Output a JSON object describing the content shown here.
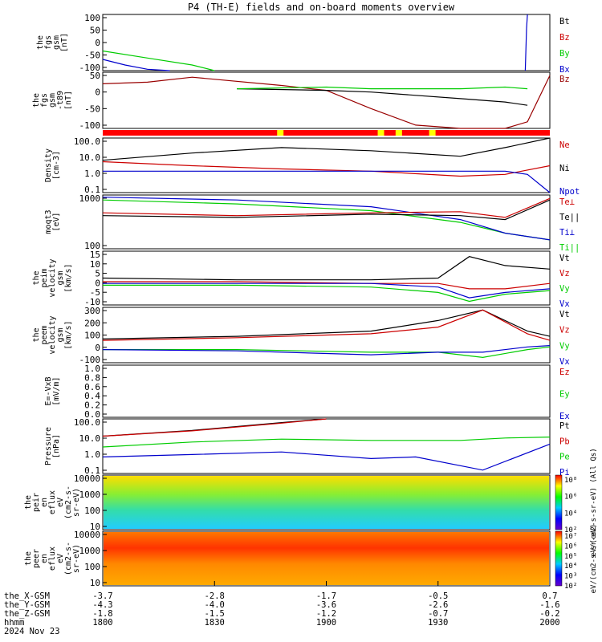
{
  "chart_data": {
    "type": "line",
    "title": "P4 (TH-E) fields and on-board moments overview",
    "x_range_hhmm": [
      1800,
      2000
    ],
    "panels": [
      {
        "id": "fgs",
        "ylabel": [
          "the",
          "fgs",
          "gsm",
          "[nT]"
        ],
        "ylim": [
          -100,
          100
        ],
        "yticks": [
          "100",
          "50",
          "0",
          "-50",
          "-100"
        ],
        "legend": [
          {
            "name": "Bt",
            "color": "#000000"
          },
          {
            "name": "Bz",
            "color": "#cc0000"
          },
          {
            "name": "By",
            "color": "#00cc00"
          },
          {
            "name": "Bx",
            "color": "#0000cc"
          }
        ]
      },
      {
        "id": "fgs-t89",
        "ylabel": [
          "the",
          "fgs",
          "gsm",
          "-t89",
          "[nT]"
        ],
        "ylim": [
          -120,
          50
        ],
        "yticks": [
          "50",
          "0",
          "-50",
          "-100"
        ],
        "legend": [
          {
            "name": "Bz",
            "color": "#990000"
          }
        ]
      },
      {
        "id": "density",
        "ylabel": [
          "Density",
          "[cm-3]"
        ],
        "log": true,
        "ylim": [
          0.1,
          100
        ],
        "yticks": [
          "100.0",
          "10.0",
          "1.0",
          "0.1"
        ],
        "legend": [
          {
            "name": "Ne",
            "color": "#cc0000"
          },
          {
            "name": "Ni",
            "color": "#000000"
          },
          {
            "name": "Npot",
            "color": "#0000cc"
          }
        ]
      },
      {
        "id": "temp",
        "ylabel": [
          "moqt3",
          "[eV]"
        ],
        "log": true,
        "ylim": [
          20,
          5000
        ],
        "yticks": [
          "1000",
          "100"
        ],
        "legend": [
          {
            "name": "Te⊥",
            "color": "#cc0000"
          },
          {
            "name": "Te||",
            "color": "#000000"
          },
          {
            "name": "Ti⊥",
            "color": "#0000cc"
          },
          {
            "name": "Ti||",
            "color": "#00cc00"
          }
        ]
      },
      {
        "id": "peim",
        "ylabel": [
          "the",
          "peim",
          "velocity",
          "gsm",
          "[km/s]"
        ],
        "ylim": [
          -12,
          18
        ],
        "yticks": [
          "15",
          "10",
          "5",
          "0",
          "-5",
          "-10"
        ],
        "legend": [
          {
            "name": "Vt",
            "color": "#000000"
          },
          {
            "name": "Vz",
            "color": "#cc0000"
          },
          {
            "name": "Vy",
            "color": "#00cc00"
          },
          {
            "name": "Vx",
            "color": "#0000cc"
          }
        ]
      },
      {
        "id": "peem",
        "ylabel": [
          "the",
          "peem",
          "velocity",
          "gsm",
          "[km/s]"
        ],
        "ylim": [
          -120,
          300
        ],
        "yticks": [
          "300",
          "200",
          "100",
          "0",
          "-100"
        ],
        "legend": [
          {
            "name": "Vt",
            "color": "#000000"
          },
          {
            "name": "Vz",
            "color": "#cc0000"
          },
          {
            "name": "Vy",
            "color": "#00cc00"
          },
          {
            "name": "Vx",
            "color": "#0000cc"
          }
        ]
      },
      {
        "id": "efield",
        "ylabel": [
          "E=-VxB",
          "[mV/m]"
        ],
        "ylim": [
          0,
          1
        ],
        "yticks": [
          "1.0",
          "0.8",
          "0.6",
          "0.4",
          "0.2",
          "0.0"
        ],
        "legend": [
          {
            "name": "Ez",
            "color": "#cc0000"
          },
          {
            "name": "Ey",
            "color": "#00cc00"
          },
          {
            "name": "Ex",
            "color": "#0000cc"
          }
        ]
      },
      {
        "id": "pressure",
        "ylabel": [
          "Pressure",
          "[nPa]"
        ],
        "log": true,
        "ylim": [
          0.05,
          100
        ],
        "yticks": [
          "100.0",
          "10.0",
          "1.0",
          "0.1"
        ],
        "legend": [
          {
            "name": "Pt",
            "color": "#000000"
          },
          {
            "name": "Pb",
            "color": "#cc0000"
          },
          {
            "name": "Pe",
            "color": "#00cc00"
          },
          {
            "name": "Pi",
            "color": "#0000cc"
          }
        ]
      },
      {
        "id": "peir",
        "ylabel": [
          "the",
          "peir",
          "en",
          "eflux",
          "eV",
          "(cm2-s-",
          "sr-eV)"
        ],
        "log": true,
        "ylim": [
          8,
          20000
        ],
        "yticks": [
          "10000",
          "1000",
          "100",
          "10"
        ],
        "colorbar_label": "eV/(cm2-s-sr-eV) (All Qs)",
        "colorbar_ticks": [
          "10⁸",
          "10⁶",
          "10⁴",
          "10²"
        ]
      },
      {
        "id": "peer",
        "ylabel": [
          "the",
          "peer",
          "en",
          "eflux",
          "eV",
          "(cm2-s-",
          "sr-eV)"
        ],
        "log": true,
        "ylim": [
          8,
          20000
        ],
        "yticks": [
          "10000",
          "1000",
          "100",
          "10"
        ],
        "colorbar_label": "eV/(cm2-s-sr-eV)",
        "colorbar_ticks": [
          "10⁷",
          "10⁶",
          "10⁵",
          "10⁴",
          "10³",
          "10²"
        ]
      }
    ],
    "flag_bar": {
      "color": "#ff0000",
      "marks": [
        {
          "t": 0.39,
          "color": "#ffff00"
        },
        {
          "t": 0.615,
          "color": "#ffff00"
        },
        {
          "t": 0.655,
          "color": "#ffff00"
        },
        {
          "t": 0.73,
          "color": "#ffff00"
        }
      ]
    },
    "footer": {
      "rows": [
        {
          "label": "the_X-GSM",
          "values": [
            "-3.7",
            "-2.8",
            "-1.7",
            "-0.5",
            "0.7"
          ]
        },
        {
          "label": "the_Y-GSM",
          "values": [
            "-4.3",
            "-4.0",
            "-3.6",
            "-2.6",
            "-1.6"
          ]
        },
        {
          "label": "the_Z-GSM",
          "values": [
            "-1.8",
            "-1.5",
            "-1.2",
            "-0.7",
            "-0.2"
          ]
        },
        {
          "label": "hhmm",
          "values": [
            "1800",
            "1830",
            "1900",
            "1930",
            "2000"
          ]
        }
      ],
      "date": "2024 Nov 23"
    },
    "series": [
      {
        "panel": "fgs",
        "name": "By",
        "color": "#00cc00",
        "x": [
          0,
          0.1,
          0.2,
          0.25
        ],
        "y": [
          -30,
          -55,
          -80,
          -100
        ]
      },
      {
        "panel": "fgs",
        "name": "Bx",
        "color": "#0000cc",
        "x": [
          0,
          0.05,
          0.1,
          0.15
        ],
        "y": [
          -60,
          -80,
          -95,
          -100
        ]
      },
      {
        "panel": "fgs",
        "name": "Bx",
        "color": "#0000cc",
        "x": [
          0.945,
          0.948,
          0.95
        ],
        "y": [
          -100,
          50,
          100
        ]
      },
      {
        "panel": "fgs-t89",
        "name": "Bz",
        "color": "#990000",
        "x": [
          0,
          0.1,
          0.2,
          0.4,
          0.5,
          0.6,
          0.7,
          0.8,
          0.9,
          0.95,
          1.0
        ],
        "y": [
          15,
          20,
          35,
          10,
          -5,
          -60,
          -110,
          -120,
          -120,
          -100,
          40
        ]
      },
      {
        "panel": "fgs-t89",
        "name": "Bt",
        "color": "#000000",
        "x": [
          0.3,
          0.5,
          0.6,
          0.7,
          0.8,
          0.9,
          0.95
        ],
        "y": [
          0,
          -5,
          -10,
          -20,
          -30,
          -40,
          -50
        ]
      },
      {
        "panel": "fgs-t89",
        "name": "By",
        "color": "#00cc00",
        "x": [
          0.3,
          0.5,
          0.6,
          0.8,
          0.9,
          0.95
        ],
        "y": [
          0,
          5,
          0,
          0,
          5,
          0
        ]
      },
      {
        "panel": "density",
        "name": "Ni",
        "color": "#000000",
        "x": [
          0,
          0.2,
          0.4,
          0.6,
          0.8,
          0.9,
          1.0
        ],
        "y": [
          6,
          15,
          30,
          20,
          10,
          30,
          100
        ]
      },
      {
        "panel": "density",
        "name": "Ne",
        "color": "#cc0000",
        "x": [
          0,
          0.2,
          0.4,
          0.6,
          0.8,
          0.9,
          1.0
        ],
        "y": [
          5,
          3,
          2,
          1.5,
          0.8,
          1,
          3
        ]
      },
      {
        "panel": "density",
        "name": "Npot",
        "color": "#0000cc",
        "x": [
          0,
          0.4,
          0.8,
          0.9,
          0.95,
          1.0
        ],
        "y": [
          1.5,
          1.5,
          1.5,
          1.5,
          1.0,
          0.1
        ]
      },
      {
        "panel": "temp",
        "name": "Ti||",
        "color": "#00cc00",
        "x": [
          0,
          0.3,
          0.6,
          0.8,
          0.9,
          1.0
        ],
        "y": [
          3000,
          2000,
          1000,
          300,
          100,
          50
        ]
      },
      {
        "panel": "temp",
        "name": "Ti⊥",
        "color": "#0000cc",
        "x": [
          0,
          0.3,
          0.6,
          0.8,
          0.9,
          1.0
        ],
        "y": [
          4000,
          3000,
          1500,
          400,
          100,
          50
        ]
      },
      {
        "panel": "temp",
        "name": "Te||",
        "color": "#000000",
        "x": [
          0,
          0.3,
          0.6,
          0.8,
          0.9,
          1.0
        ],
        "y": [
          600,
          500,
          700,
          600,
          400,
          3000
        ]
      },
      {
        "panel": "temp",
        "name": "Te⊥",
        "color": "#cc0000",
        "x": [
          0,
          0.3,
          0.6,
          0.8,
          0.9,
          1.0
        ],
        "y": [
          800,
          600,
          800,
          900,
          500,
          3500
        ]
      },
      {
        "panel": "peim",
        "name": "Vt",
        "color": "#000000",
        "x": [
          0,
          0.3,
          0.6,
          0.75,
          0.82,
          0.9,
          1.0
        ],
        "y": [
          3,
          2,
          2,
          3,
          15,
          10,
          8
        ]
      },
      {
        "panel": "peim",
        "name": "Vz",
        "color": "#cc0000",
        "x": [
          0,
          0.3,
          0.6,
          0.75,
          0.82,
          0.9,
          1.0
        ],
        "y": [
          1,
          1,
          0,
          0,
          -3,
          -3,
          0
        ]
      },
      {
        "panel": "peim",
        "name": "Vy",
        "color": "#00cc00",
        "x": [
          0,
          0.3,
          0.6,
          0.75,
          0.82,
          0.9,
          1.0
        ],
        "y": [
          -1,
          -1,
          -2,
          -5,
          -10,
          -6,
          -4
        ]
      },
      {
        "panel": "peim",
        "name": "Vx",
        "color": "#0000cc",
        "x": [
          0,
          0.3,
          0.6,
          0.75,
          0.82,
          0.9,
          1.0
        ],
        "y": [
          0,
          0,
          0,
          -2,
          -8,
          -5,
          -3
        ]
      },
      {
        "panel": "peem",
        "name": "Vt",
        "color": "#000000",
        "x": [
          0,
          0.3,
          0.6,
          0.75,
          0.85,
          0.95,
          1.0
        ],
        "y": [
          60,
          80,
          120,
          200,
          280,
          120,
          80
        ]
      },
      {
        "panel": "peem",
        "name": "Vz",
        "color": "#cc0000",
        "x": [
          0,
          0.3,
          0.6,
          0.75,
          0.85,
          0.95,
          1.0
        ],
        "y": [
          50,
          70,
          100,
          150,
          280,
          100,
          50
        ]
      },
      {
        "panel": "peem",
        "name": "Vy",
        "color": "#00cc00",
        "x": [
          0,
          0.3,
          0.6,
          0.75,
          0.85,
          0.95,
          1.0
        ],
        "y": [
          -20,
          -20,
          -40,
          -40,
          -80,
          -20,
          0
        ]
      },
      {
        "panel": "peem",
        "name": "Vx",
        "color": "#0000cc",
        "x": [
          0,
          0.3,
          0.6,
          0.75,
          0.85,
          0.95,
          1.0
        ],
        "y": [
          -20,
          -30,
          -60,
          -40,
          -40,
          0,
          10
        ]
      },
      {
        "panel": "pressure",
        "name": "Pt",
        "color": "#000000",
        "x": [
          0,
          0.2,
          0.4,
          0.5
        ],
        "y": [
          9,
          20,
          60,
          100
        ]
      },
      {
        "panel": "pressure",
        "name": "Pb",
        "color": "#cc0000",
        "x": [
          0,
          0.2,
          0.4,
          0.5
        ],
        "y": [
          9,
          19,
          55,
          100
        ]
      },
      {
        "panel": "pressure",
        "name": "Pe",
        "color": "#00cc00",
        "x": [
          0,
          0.2,
          0.4,
          0.6,
          0.8,
          0.9,
          1.0
        ],
        "y": [
          2,
          4,
          6,
          5,
          5,
          7,
          8
        ]
      },
      {
        "panel": "pressure",
        "name": "Pi",
        "color": "#0000cc",
        "x": [
          0,
          0.2,
          0.4,
          0.6,
          0.7,
          0.85,
          1.0
        ],
        "y": [
          0.5,
          0.7,
          1.0,
          0.4,
          0.5,
          0.08,
          3
        ]
      }
    ]
  }
}
